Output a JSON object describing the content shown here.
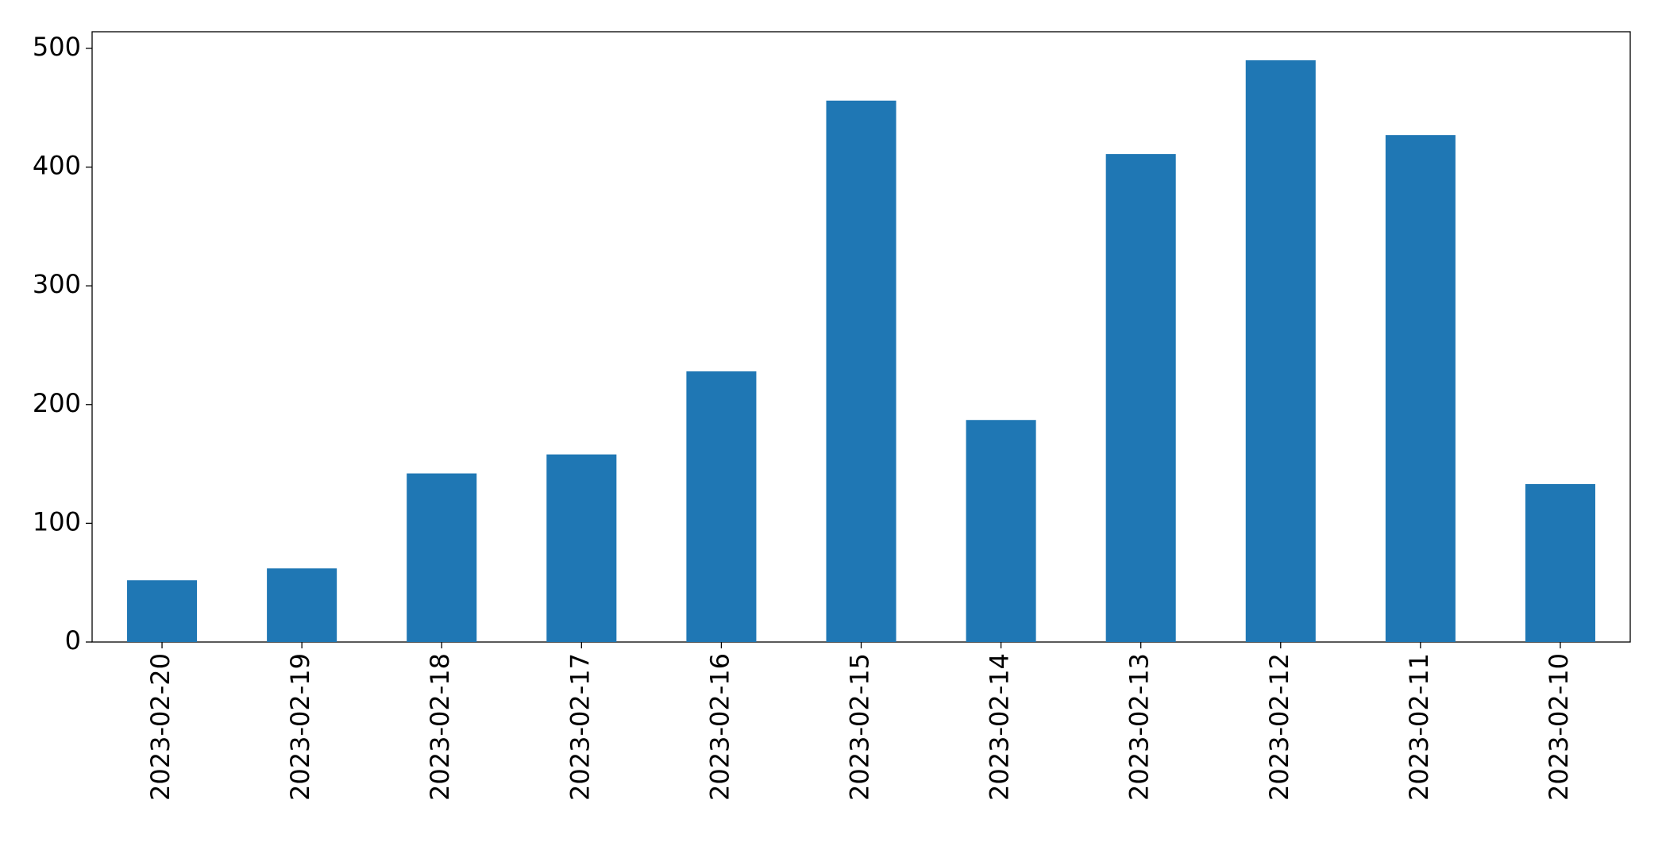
{
  "chart_data": {
    "type": "bar",
    "categories": [
      "2023-02-20",
      "2023-02-19",
      "2023-02-18",
      "2023-02-17",
      "2023-02-16",
      "2023-02-15",
      "2023-02-14",
      "2023-02-13",
      "2023-02-12",
      "2023-02-11",
      "2023-02-10"
    ],
    "values": [
      52,
      62,
      142,
      158,
      228,
      456,
      187,
      411,
      490,
      427,
      133
    ],
    "color": "#1f77b4",
    "ylim": [
      0,
      514
    ],
    "yticks": [
      0,
      100,
      200,
      300,
      400,
      500
    ],
    "grid": false
  }
}
